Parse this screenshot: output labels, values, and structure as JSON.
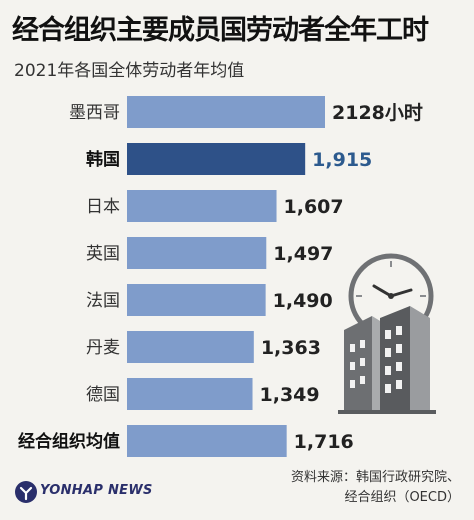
{
  "title": "经合组织主要成员国劳动者全年工时",
  "subtitle": "2021年各国全体劳动者年均值",
  "source_line1": "资料来源：韩国行政研究院、",
  "source_line2": "经合组织（OECD）",
  "logo_text": "YONHAP NEWS",
  "colors": {
    "bar": "#7f9ccb",
    "highlight": "#2e5188",
    "value_highlight": "#2c5a8e"
  },
  "chart_data": {
    "type": "bar",
    "orientation": "horizontal",
    "categories": [
      "墨西哥",
      "韩国",
      "日本",
      "英国",
      "法国",
      "丹麦",
      "德国",
      "经合组织均值"
    ],
    "values": [
      2128,
      1915,
      1607,
      1497,
      1490,
      1363,
      1349,
      1716
    ],
    "value_labels": [
      "2128小时",
      "1,915",
      "1,607",
      "1,497",
      "1,490",
      "1,363",
      "1,349",
      "1,716"
    ],
    "highlighted_category": "韩国",
    "bold_categories": [
      "韩国",
      "经合组织均值"
    ],
    "xlim": [
      0,
      2128
    ],
    "title": "经合组织主要成员国劳动者全年工时",
    "subtitle": "2021年各国全体劳动者年均值",
    "xlabel": "",
    "ylabel": ""
  }
}
